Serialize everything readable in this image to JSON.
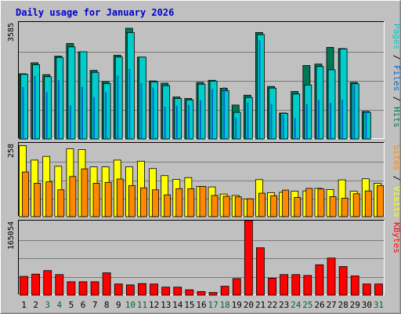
{
  "chart_data": {
    "title": "Daily usage for January 2026",
    "type": "bar",
    "categories": [
      "1",
      "2",
      "3",
      "4",
      "5",
      "6",
      "7",
      "8",
      "9",
      "10",
      "11",
      "12",
      "13",
      "14",
      "15",
      "16",
      "17",
      "18",
      "19",
      "20",
      "21",
      "22",
      "23",
      "24",
      "25",
      "26",
      "27",
      "28",
      "29",
      "30",
      "31"
    ],
    "weekend_days": [
      3,
      4,
      10,
      11,
      17,
      18,
      24,
      25,
      31
    ],
    "colors": {
      "hits": "#00cccc",
      "hits_dark": "#006666",
      "files": "#0066cc",
      "pages": "#007755",
      "sites": "#ff8800",
      "visits": "#ffff00",
      "kbytes": "#ff0000",
      "title": "#0000cc",
      "weekend_tick": "#006633",
      "weekday_tick": "#000000",
      "panel_bg": "#c0c0c0"
    },
    "panels": [
      {
        "name": "hits",
        "ymax_label": "3585",
        "ymax": 3585,
        "legend": [
          {
            "text": "Pages",
            "color": "#00cccc"
          },
          {
            "text": " / ",
            "color": "#000000"
          },
          {
            "text": "Files",
            "color": "#0066cc"
          },
          {
            "text": " / ",
            "color": "#000000"
          },
          {
            "text": "Hits",
            "color": "#007755"
          }
        ],
        "series": [
          {
            "name": "Hits",
            "values": [
              2010,
              2350,
              1985,
              2555,
              2945,
              2685,
              2115,
              1770,
              2585,
              3415,
              2525,
              1790,
              1720,
              1295,
              1250,
              1745,
              1810,
              1565,
              1045,
              1350,
              3285,
              1620,
              800,
              1465,
              2265,
              2310,
              2825,
              2790,
              1745,
              850,
              0
            ]
          },
          {
            "name": "Files",
            "values": [
              1995,
              2290,
              1920,
              2515,
              2840,
              2690,
              2055,
              1710,
              2530,
              3285,
              2525,
              1765,
              1645,
              1250,
              1205,
              1690,
              1785,
              1490,
              820,
              1280,
              3220,
              1570,
              790,
              1385,
              1665,
              2235,
              2135,
              2780,
              1700,
              820,
              0
            ]
          },
          {
            "name": "Pages",
            "values": [
              1600,
              1935,
              1440,
              1820,
              1035,
              1605,
              1290,
              1440,
              1955,
              2165,
              1720,
              1585,
              1000,
              1035,
              1050,
              1190,
              1540,
              1600,
              660,
              1130,
              3050,
              1085,
              740,
              650,
              1075,
              1200,
              1110,
              1210,
              1660,
              850,
              0
            ]
          }
        ]
      },
      {
        "name": "visits",
        "ymax_label": "258",
        "ymax": 258,
        "legend": [
          {
            "text": "Sites",
            "color": "#ff8800"
          },
          {
            "text": " / ",
            "color": "#000000"
          },
          {
            "text": "Visits",
            "color": "#ffff00"
          }
        ],
        "series": [
          {
            "name": "Visits",
            "values": [
              251,
              200,
              213,
              178,
              240,
              237,
              176,
              176,
              200,
              176,
              196,
              170,
              145,
              132,
              138,
              107,
              105,
              80,
              75,
              63,
              131,
              85,
              86,
              90,
              91,
              100,
              96,
              130,
              90,
              134,
              118
            ]
          },
          {
            "name": "Sites",
            "values": [
              158,
              118,
              123,
              95,
              142,
              169,
              118,
              121,
              133,
              110,
              102,
              95,
              77,
              99,
              99,
              107,
              75,
              72,
              70,
              63,
              83,
              74,
              94,
              68,
              100,
              98,
              71,
              65,
              81,
              91,
              110
            ]
          }
        ]
      },
      {
        "name": "kbytes",
        "ymax_label": "165054",
        "ymax": 165054,
        "legend": [
          {
            "text": "KBytes",
            "color": "#ff0000"
          }
        ],
        "series": [
          {
            "name": "KBytes",
            "values": [
              42000,
              47000,
              55000,
              46000,
              30000,
              30000,
              30000,
              50000,
              25000,
              23000,
              26000,
              25000,
              18000,
              18000,
              12000,
              8000,
              6000,
              20000,
              37000,
              167000,
              106000,
              38000,
              46000,
              46000,
              44000,
              68000,
              83000,
              64000,
              43000,
              25000,
              25000
            ]
          }
        ]
      }
    ]
  }
}
